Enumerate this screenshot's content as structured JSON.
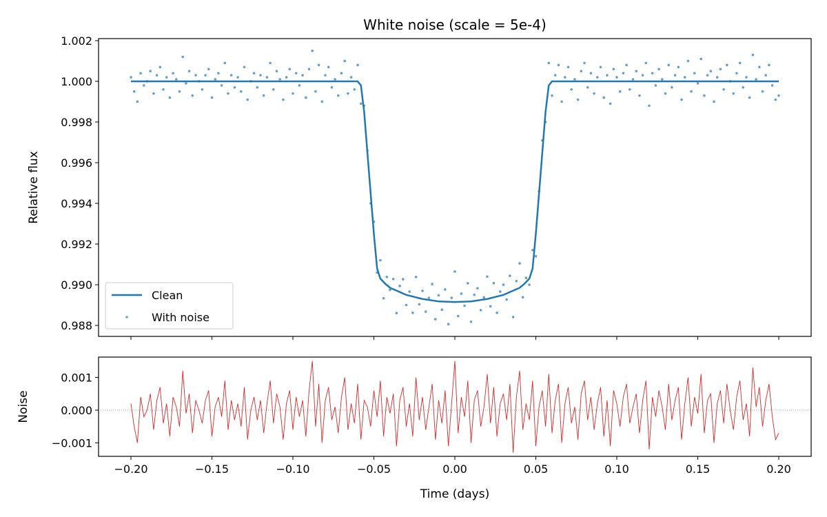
{
  "chart_data": [
    {
      "type": "line+scatter",
      "title": "White noise (scale = 5e-4)",
      "xlabel": "",
      "ylabel": "Relative flux",
      "xlim": [
        -0.22,
        0.22
      ],
      "ylim": [
        0.98746,
        1.0021
      ],
      "x_ticks": [
        -0.2,
        -0.15,
        -0.1,
        -0.05,
        0.0,
        0.05,
        0.1,
        0.15,
        0.2
      ],
      "y_ticks": [
        0.988,
        0.99,
        0.992,
        0.994,
        0.996,
        0.998,
        1.0,
        1.002
      ],
      "y_tick_labels": [
        "0.988",
        "0.990",
        "0.992",
        "0.994",
        "0.996",
        "0.998",
        "1.000",
        "1.002"
      ],
      "legend": {
        "placement": "lower-left",
        "entries": [
          "Clean",
          "With noise"
        ]
      },
      "series": [
        {
          "name": "Clean",
          "kind": "line",
          "color": "#1f77b4",
          "x": [
            -0.2,
            -0.06,
            -0.058,
            -0.056,
            -0.054,
            -0.052,
            -0.05,
            -0.048,
            -0.046,
            -0.043,
            -0.04,
            -0.03,
            -0.02,
            -0.01,
            0.0,
            0.01,
            0.02,
            0.03,
            0.04,
            0.043,
            0.046,
            0.048,
            0.05,
            0.052,
            0.054,
            0.056,
            0.058,
            0.06,
            0.2
          ],
          "y": [
            1.0,
            1.0,
            0.9998,
            0.9985,
            0.9965,
            0.9945,
            0.9925,
            0.9908,
            0.9903,
            0.99005,
            0.98985,
            0.9895,
            0.9893,
            0.98918,
            0.98915,
            0.98918,
            0.9893,
            0.9895,
            0.98985,
            0.99005,
            0.9903,
            0.9908,
            0.9925,
            0.9945,
            0.9965,
            0.9985,
            0.9998,
            1.0,
            1.0
          ]
        },
        {
          "name": "With noise",
          "kind": "scatter",
          "color": "#1f77b4",
          "definition": "Clean + noise"
        }
      ]
    },
    {
      "type": "line",
      "xlabel": "Time (days)",
      "ylabel": "Noise",
      "xlim": [
        -0.22,
        0.22
      ],
      "ylim": [
        -0.00141,
        0.00162
      ],
      "x_ticks": [
        -0.2,
        -0.15,
        -0.1,
        -0.05,
        0.0,
        0.05,
        0.1,
        0.15,
        0.2
      ],
      "x_tick_labels": [
        "−0.20",
        "−0.15",
        "−0.10",
        "−0.05",
        "0.00",
        "0.05",
        "0.10",
        "0.15",
        "0.20"
      ],
      "y_ticks": [
        -0.001,
        0.0,
        0.001
      ],
      "y_tick_labels": [
        "−0.001",
        "0.000",
        "0.001"
      ],
      "zero_line": {
        "style": "dotted",
        "color": "#808080"
      },
      "series": [
        {
          "kind": "line",
          "color": "#d62728",
          "x_start": -0.2,
          "x_step": 0.002,
          "values": [
            0.0002,
            -0.0005,
            -0.001,
            0.0004,
            -0.0002,
            0.0,
            0.0005,
            -0.0006,
            0.0003,
            0.0007,
            -0.0004,
            0.0002,
            -0.0008,
            0.0004,
            0.0001,
            -0.0005,
            0.0012,
            -0.0001,
            0.0005,
            -0.0007,
            0.0003,
            0.0,
            -0.0004,
            0.0003,
            0.0006,
            -0.0008,
            0.0001,
            0.0004,
            -0.0002,
            0.0009,
            -0.0006,
            0.0003,
            -0.0003,
            0.0002,
            -0.0005,
            0.0007,
            -0.0009,
            0.0,
            0.0004,
            -0.0003,
            0.0003,
            -0.0007,
            0.0002,
            0.0009,
            -0.0004,
            0.0005,
            0.0001,
            -0.0009,
            0.0002,
            0.0006,
            -0.0006,
            0.0004,
            -0.0002,
            0.0003,
            -0.0008,
            0.0006,
            0.0015,
            -0.0005,
            0.0008,
            -0.001,
            0.0003,
            0.0007,
            -0.0003,
            0.0001,
            -0.0007,
            0.0004,
            0.001,
            -0.0006,
            0.0002,
            -0.0004,
            0.0008,
            -0.0009,
            0.0003,
            0.0001,
            -0.0005,
            0.0006,
            -0.0002,
            0.0009,
            -0.0008,
            0.0004,
            -0.0001,
            0.0005,
            -0.0011,
            0.0003,
            0.0007,
            -0.0005,
            0.0002,
            -0.0008,
            0.001,
            -0.0003,
            0.0004,
            -0.0006,
            0.0001,
            0.0008,
            -0.0009,
            0.0003,
            -0.0004,
            0.0006,
            -0.0011,
            0.0002,
            0.0015,
            -0.0007,
            0.0004,
            -0.0002,
            0.0009,
            -0.001,
            0.0003,
            0.0006,
            -0.0005,
            0.0001,
            0.0011,
            -0.0004,
            0.0007,
            -0.0008,
            0.0002,
            0.0005,
            -0.0003,
            0.0008,
            -0.0013,
            0.0004,
            0.0012,
            -0.0006,
            0.0002,
            -0.0003,
            0.0009,
            -0.0011,
            0.0001,
            0.0006,
            -0.0005,
            0.0011,
            -0.0007,
            0.0003,
            0.0008,
            -0.001,
            0.0002,
            0.0007,
            -0.0004,
            0.0001,
            -0.0009,
            0.0005,
            0.0009,
            -0.0003,
            0.0004,
            -0.0006,
            0.0002,
            0.0007,
            -0.0008,
            0.0003,
            -0.0011,
            0.0006,
            0.0002,
            -0.0005,
            0.0004,
            0.0008,
            -0.0004,
            0.0001,
            0.0005,
            -0.0007,
            0.0003,
            0.0009,
            -0.0012,
            0.0004,
            -0.0002,
            0.0006,
            0.0001,
            -0.0006,
            0.0008,
            -0.0003,
            0.0003,
            0.0007,
            -0.0009,
            0.0002,
            0.001,
            -0.0005,
            0.0004,
            -0.0001,
            0.0011,
            -0.0007,
            0.0003,
            0.0005,
            -0.001,
            0.0002,
            0.0006,
            -0.0004,
            0.0008,
            0.0,
            -0.0006,
            0.0004,
            0.0009,
            -0.0003,
            0.0002,
            -0.0008,
            0.0013,
            0.0001,
            0.0007,
            -0.0005,
            0.0003,
            0.0008,
            -0.0002,
            -0.0009,
            -0.0007
          ]
        }
      ]
    }
  ]
}
